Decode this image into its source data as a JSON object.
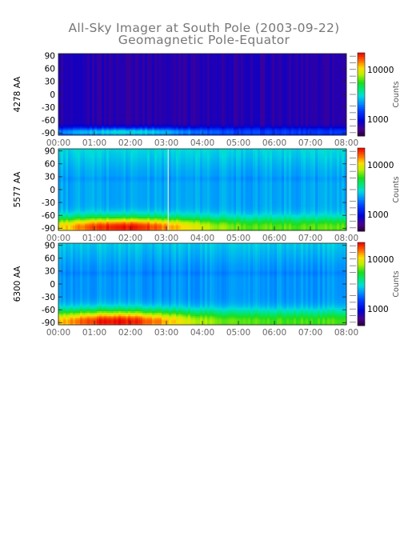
{
  "chart_data": {
    "type": "heatmap",
    "title": "All-Sky Imager at South Pole (2003-09-22)",
    "subtitle": "Geomagnetic Pole-Equator",
    "x_tick_labels": [
      "00:00",
      "01:00",
      "02:00",
      "03:00",
      "04:00",
      "05:00",
      "06:00",
      "07:00",
      "08:00"
    ],
    "x_range_hours": [
      0,
      8
    ],
    "y_tick_labels": [
      "90",
      "60",
      "30",
      "0",
      "-30",
      "-60",
      "-90"
    ],
    "y_range": [
      -95,
      95
    ],
    "colorbar": {
      "label": "Counts",
      "tick_labels": [
        "10000",
        "1000"
      ],
      "scale": "log",
      "colormap": "rainbow (purple-blue-cyan-green-yellow-red)"
    },
    "panels": [
      {
        "ylabel": "4278 AA",
        "bg_level": 0.13,
        "band_peak": 0.5,
        "band_latitude": -88,
        "band_width": 10,
        "peak_time_hours": 1.9,
        "vertical_line_hours": null
      },
      {
        "ylabel": "5577 AA",
        "bg_level": 0.42,
        "band_peak": 0.99,
        "band_latitude": -88,
        "band_width": 24,
        "peak_time_hours": 1.8,
        "vertical_line_hours": 3.05
      },
      {
        "ylabel": "6300 AA",
        "bg_level": 0.4,
        "band_peak": 0.99,
        "band_latitude": -88,
        "band_width": 27,
        "peak_time_hours": 1.6,
        "vertical_line_hours": null
      }
    ]
  }
}
